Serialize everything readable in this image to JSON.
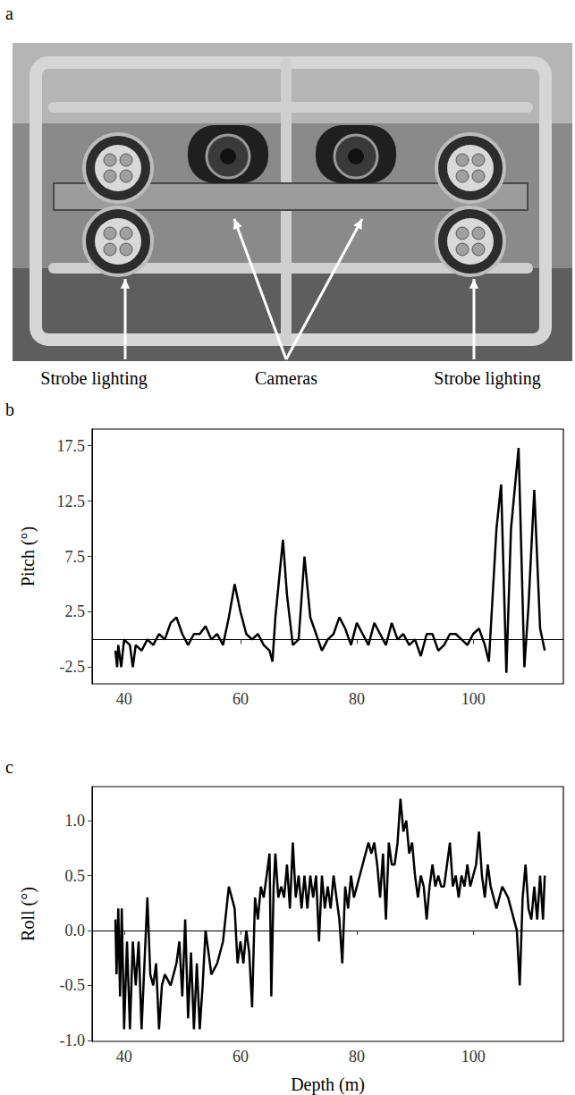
{
  "photo": {
    "letter": "a",
    "labels": [
      "Strobe lighting",
      "Cameras",
      "Strobe lighting"
    ]
  },
  "chart_data": [
    {
      "letter": "b",
      "type": "line",
      "x_label": "Depth (m)",
      "y_label": "Pitch (°)",
      "color": "#000000",
      "grid": false,
      "xlim": [
        34.5,
        115.5
      ],
      "xticks": [
        40,
        60,
        80,
        100
      ],
      "ylim": [
        -4,
        19
      ],
      "yticks": [
        -2.5,
        2.5,
        7.5,
        12.5,
        17.5
      ],
      "x": [
        38.5,
        38.8,
        39,
        39.5,
        40,
        41,
        41.5,
        42,
        43,
        44,
        45,
        46,
        47,
        48,
        49,
        50,
        51,
        52,
        53,
        54,
        55,
        56,
        57,
        58,
        59,
        60,
        61,
        62,
        63,
        64,
        65,
        65.5,
        66,
        67.3,
        68,
        69,
        70,
        71,
        72,
        73,
        74,
        75,
        76,
        77,
        78,
        79,
        80,
        81,
        82,
        83,
        84,
        85,
        86,
        87,
        88,
        89,
        90,
        91,
        92,
        93,
        94,
        95,
        96,
        97,
        98,
        99,
        100,
        101,
        102,
        102.7,
        104,
        104.8,
        105.7,
        106.5,
        107.8,
        108.8,
        109.5,
        110.5,
        111.5,
        112.3
      ],
      "values": [
        -1,
        -2.5,
        -0.5,
        -2.5,
        0,
        -0.5,
        -2.5,
        -0.5,
        -1,
        0,
        -0.5,
        0.5,
        0,
        1.5,
        2,
        0.5,
        -0.5,
        0.5,
        0.5,
        1.2,
        0,
        0.5,
        -0.5,
        2,
        5,
        2.5,
        0.5,
        0,
        0.5,
        -0.5,
        -1,
        -2,
        2,
        9,
        4,
        -0.5,
        0,
        7.5,
        2,
        0.5,
        -1,
        0,
        0.5,
        2,
        1,
        -0.5,
        1.5,
        0.5,
        -0.5,
        1.5,
        0.5,
        -0.5,
        1.5,
        0,
        0.5,
        -0.5,
        0,
        -1.5,
        0.5,
        0.5,
        -1,
        -0.5,
        0.5,
        0.5,
        0,
        -0.5,
        0.5,
        1,
        -0.5,
        -2,
        10,
        14,
        -3,
        10,
        17.3,
        -2.5,
        3,
        13.5,
        1,
        -1
      ]
    },
    {
      "letter": "c",
      "type": "line",
      "x_label": "Depth (m)",
      "y_label": "Roll (°)",
      "color": "#000000",
      "grid": false,
      "xlim": [
        34.5,
        115.5
      ],
      "xticks": [
        40,
        60,
        80,
        100
      ],
      "ylim": [
        -1.01,
        1.31
      ],
      "yticks": [
        {
          "value": -1,
          "label": "-1.0"
        },
        -0.5,
        {
          "value": 0,
          "label": "0.0"
        },
        0.5,
        {
          "value": 1,
          "label": "1.0"
        }
      ],
      "x": [
        38.5,
        38.7,
        39,
        39.3,
        39.6,
        40,
        40.5,
        41,
        41.5,
        42,
        42.5,
        43,
        43.5,
        44,
        44.5,
        45,
        45.5,
        46,
        46.5,
        47,
        48,
        49,
        49.5,
        50,
        50.5,
        51,
        51.5,
        52,
        52.5,
        53,
        53.5,
        54,
        54.5,
        55,
        56,
        57,
        58,
        59,
        59.5,
        60,
        60.5,
        61,
        61.5,
        62,
        62.5,
        63,
        63.5,
        64,
        65,
        65.3,
        65.7,
        66,
        66.5,
        67,
        67.5,
        68,
        68.5,
        69,
        69.5,
        70,
        70.5,
        71,
        71.5,
        72,
        72.5,
        73,
        73.5,
        74,
        74.5,
        75,
        75.5,
        76,
        76.5,
        77,
        77.5,
        78,
        78.5,
        79,
        79.5,
        80,
        81,
        82,
        82.5,
        83,
        83.5,
        84,
        84.5,
        85,
        85.5,
        86,
        86.5,
        87,
        87.5,
        88,
        88.5,
        89,
        89.5,
        90,
        90.5,
        91,
        91.5,
        92,
        92.5,
        93,
        93.5,
        94,
        94.5,
        95,
        95.5,
        96,
        96.5,
        97,
        97.5,
        98,
        98.5,
        99,
        99.5,
        100,
        100.5,
        101,
        101.5,
        102,
        102.5,
        103,
        104,
        105,
        106,
        107,
        107.5,
        108,
        108.5,
        109,
        109.5,
        110,
        110.5,
        111,
        111.5,
        112,
        112.3
      ],
      "values": [
        0.1,
        -0.4,
        0.2,
        -0.6,
        0.2,
        -0.9,
        -0.1,
        -0.9,
        -0.1,
        -0.5,
        -0.1,
        -0.9,
        -0.3,
        0.3,
        -0.4,
        -0.5,
        -0.3,
        -0.9,
        -0.5,
        -0.4,
        -0.5,
        -0.3,
        -0.1,
        -0.6,
        0.1,
        -0.8,
        -0.2,
        -0.9,
        -0.3,
        -0.9,
        -0.5,
        0,
        -0.2,
        -0.4,
        -0.3,
        -0.1,
        0.4,
        0.2,
        -0.3,
        -0.1,
        -0.3,
        0,
        -0.2,
        -0.7,
        0.3,
        0.1,
        0.4,
        0.3,
        0.7,
        -0.6,
        0.4,
        0.7,
        0.3,
        0.4,
        0.3,
        0.6,
        0.2,
        0.8,
        0.3,
        0.5,
        0.2,
        0.5,
        0.2,
        0.5,
        0.3,
        0.5,
        -0.1,
        0.5,
        0.2,
        0.4,
        0.2,
        0.5,
        0.3,
        0.1,
        -0.3,
        0.4,
        0.2,
        0.5,
        0.3,
        0.4,
        0.6,
        0.8,
        0.7,
        0.8,
        0.6,
        0.3,
        0.7,
        0.1,
        0.8,
        0.6,
        0.6,
        0.8,
        1.2,
        0.9,
        1,
        0.7,
        0.8,
        0.5,
        0.3,
        0.5,
        0.4,
        0.1,
        0.4,
        0.6,
        0.4,
        0.5,
        0.4,
        0.4,
        0.6,
        0.8,
        0.4,
        0.5,
        0.3,
        0.5,
        0.4,
        0.6,
        0.4,
        0.5,
        0.6,
        0.9,
        0.5,
        0.3,
        0.6,
        0.4,
        0.2,
        0.4,
        0.3,
        0.1,
        0,
        -0.5,
        0.3,
        0.6,
        0.2,
        0.1,
        0.4,
        0.1,
        0.5,
        0.1,
        0.5
      ]
    }
  ]
}
